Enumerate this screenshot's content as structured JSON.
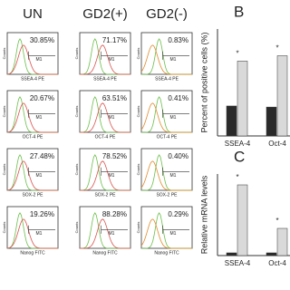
{
  "columns": [
    "UN",
    "GD2(+)",
    "GD2(-)"
  ],
  "y_label": "Counts",
  "gate": "M1",
  "rows": [
    {
      "marker": "SSEA-4 PE",
      "percents": [
        "30.85%",
        "71.17%",
        "0.83%"
      ]
    },
    {
      "marker": "OCT-4 PE",
      "percents": [
        "20.67%",
        "63.51%",
        "0.41%"
      ]
    },
    {
      "marker": "SOX-2 PE",
      "percents": [
        "27.48%",
        "78.52%",
        "0.40%"
      ]
    },
    {
      "marker": "Nanog FITC",
      "percents": [
        "19.26%",
        "88.28%",
        "0.29%"
      ]
    }
  ],
  "panel_b": {
    "label": "B",
    "y_label": "Percent of positive cells (%)",
    "categories": [
      "SSEA-4",
      "Oct-4"
    ],
    "series": [
      {
        "color": "#2a2a2a",
        "values": [
          28,
          27
        ]
      },
      {
        "color": "#d9d9d9",
        "values": [
          70,
          75
        ]
      }
    ],
    "ylim": [
      0,
      100
    ],
    "annotation": "*"
  },
  "panel_c": {
    "label": "C",
    "y_label": "Relative mRNA levels",
    "categories": [
      "SSEA-4",
      "Oct-4"
    ],
    "series": [
      {
        "color": "#2a2a2a",
        "values": [
          1,
          1
        ]
      },
      {
        "color": "#d9d9d9",
        "values": [
          26,
          10
        ]
      }
    ],
    "ylim": [
      0,
      30
    ],
    "annotation": "*"
  }
}
